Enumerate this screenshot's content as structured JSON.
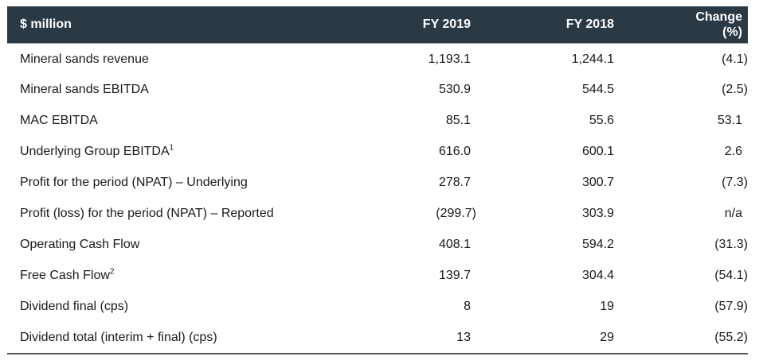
{
  "table": {
    "unit_label": "$ million",
    "columns": [
      {
        "label": "FY 2019"
      },
      {
        "label": "FY 2018"
      },
      {
        "label": "Change",
        "sublabel": "(%)"
      }
    ],
    "rows": [
      {
        "label": "Mineral sands revenue",
        "sup": "",
        "fy2019": "1,193.1",
        "fy2018": "1,244.1",
        "change": "(4.1)"
      },
      {
        "label": "Mineral sands EBITDA",
        "sup": "",
        "fy2019": "530.9",
        "fy2018": "544.5",
        "change": "(2.5)"
      },
      {
        "label": "MAC EBITDA",
        "sup": "",
        "fy2019": "85.1",
        "fy2018": "55.6",
        "change": "53.1"
      },
      {
        "label": "Underlying Group EBITDA",
        "sup": "1",
        "fy2019": "616.0",
        "fy2018": "600.1",
        "change": "2.6"
      },
      {
        "label": "Profit for the period (NPAT) – Underlying",
        "sup": "",
        "fy2019": "278.7",
        "fy2018": "300.7",
        "change": "(7.3)"
      },
      {
        "label": "Profit (loss) for the period (NPAT) – Reported",
        "sup": "",
        "fy2019": "(299.7)",
        "fy2018": "303.9",
        "change": "n/a"
      },
      {
        "label": "Operating Cash Flow",
        "sup": "",
        "fy2019": "408.1",
        "fy2018": "594.2",
        "change": "(31.3)"
      },
      {
        "label": "Free Cash Flow",
        "sup": "2",
        "fy2019": "139.7",
        "fy2018": "304.4",
        "change": "(54.1)"
      },
      {
        "label": "Dividend final (cps)",
        "sup": "",
        "fy2019": "8",
        "fy2018": "19",
        "change": "(57.9)"
      },
      {
        "label": "Dividend total (interim + final) (cps)",
        "sup": "",
        "fy2019": "13",
        "fy2018": "29",
        "change": "(55.2)"
      }
    ]
  },
  "colors": {
    "header_bg": "#2b3945",
    "header_text": "#ffffff",
    "body_text": "#1a1a1a",
    "bottom_border": "#53575b"
  }
}
